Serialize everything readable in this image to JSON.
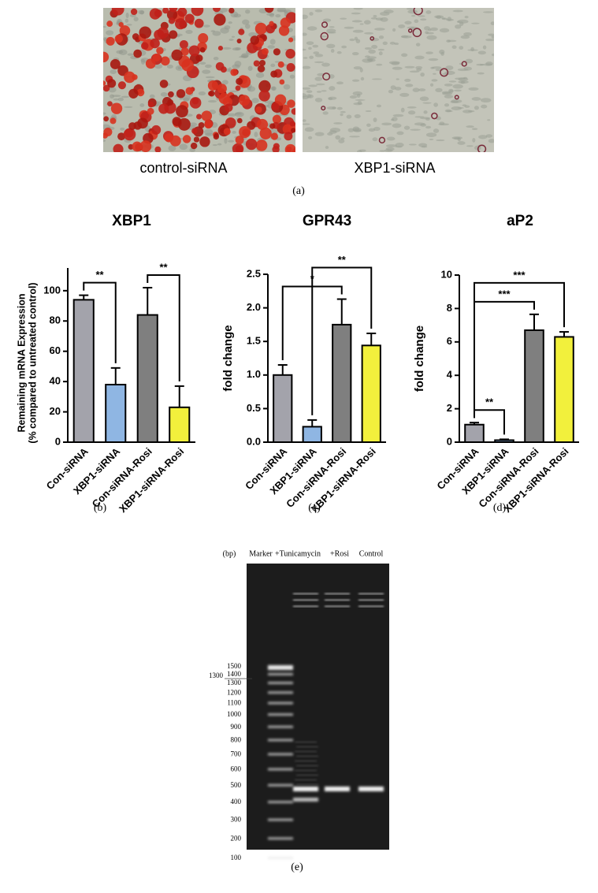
{
  "panel_a": {
    "labels": [
      "control-siRNA",
      "XBP1-siRNA"
    ],
    "caption": "(a)"
  },
  "chart_data": [
    {
      "type": "bar",
      "title": "XBP1",
      "ylabel": [
        "Remaining mRNA Expression",
        "(% compared to untreated control)"
      ],
      "categories": [
        "Con-siRNA",
        "XBP1-siRNA",
        "Con-siRNA-Rosi",
        "XBP1-siRNA-Rosi"
      ],
      "values": [
        94,
        38,
        84,
        23
      ],
      "errors": [
        3,
        11,
        18,
        14
      ],
      "colors": [
        "#a3a3ab",
        "#8fb6e3",
        "#7f7f7f",
        "#f2f03c"
      ],
      "ylim": [
        0,
        115
      ],
      "yticks": [
        0,
        20,
        40,
        60,
        80,
        100
      ],
      "significance": [
        {
          "from": 0,
          "to": 1,
          "label": "**"
        },
        {
          "from": 2,
          "to": 3,
          "label": "**"
        }
      ],
      "caption": "(b)"
    },
    {
      "type": "bar",
      "title": "GPR43",
      "ylabel": [
        "fold change"
      ],
      "categories": [
        "Con-siRNA",
        "XBP1-siRNA",
        "Con-siRNA-Rosi",
        "XBP1-siRNA-Rosi"
      ],
      "values": [
        1.0,
        0.23,
        1.75,
        1.44
      ],
      "errors": [
        0.15,
        0.1,
        0.38,
        0.18
      ],
      "colors": [
        "#a3a3ab",
        "#8fb6e3",
        "#7f7f7f",
        "#f2f03c"
      ],
      "ylim": [
        0,
        2.5
      ],
      "yticks": [
        {
          "value": 0,
          "label": "0.0"
        },
        0.5,
        {
          "value": 1,
          "label": "1.0"
        },
        1.5,
        {
          "value": 2,
          "label": "2.0"
        },
        2.5
      ],
      "significance": [
        {
          "from": 0,
          "to": 2,
          "label": "*"
        },
        {
          "from": 1,
          "to": 3,
          "label": "**"
        }
      ],
      "caption": "(c)"
    },
    {
      "type": "bar",
      "title": "aP2",
      "ylabel": [
        "fold change"
      ],
      "categories": [
        "Con-siRNA",
        "XBP1-siRNA",
        "Con-siRNA-Rosi",
        "XBP1-siRNA-Rosi"
      ],
      "values": [
        1.05,
        0.12,
        6.7,
        6.3
      ],
      "errors": [
        0.12,
        0.05,
        0.95,
        0.3
      ],
      "colors": [
        "#a3a3ab",
        "#8fb6e3",
        "#7f7f7f",
        "#f2f03c"
      ],
      "ylim": [
        0,
        10
      ],
      "yticks": [
        0,
        2,
        4,
        6,
        8,
        10
      ],
      "significance": [
        {
          "from": 0,
          "to": 1,
          "label": "**"
        },
        {
          "from": 0,
          "to": 2,
          "label": "***"
        },
        {
          "from": 0,
          "to": 3,
          "label": "***"
        }
      ],
      "caption": "(d)"
    }
  ],
  "gel": {
    "unit": "(bp)",
    "lanes": [
      "Marker",
      "+Tunicamycin",
      "+Rosi",
      "Control"
    ],
    "ladder": [
      "1500",
      "1400",
      "1300",
      "1200",
      "1100",
      "1000",
      "900",
      "800",
      "700",
      "600",
      "500",
      "400",
      "300",
      "200",
      "100"
    ],
    "pointer_label": "1300",
    "caption": "(e)"
  }
}
